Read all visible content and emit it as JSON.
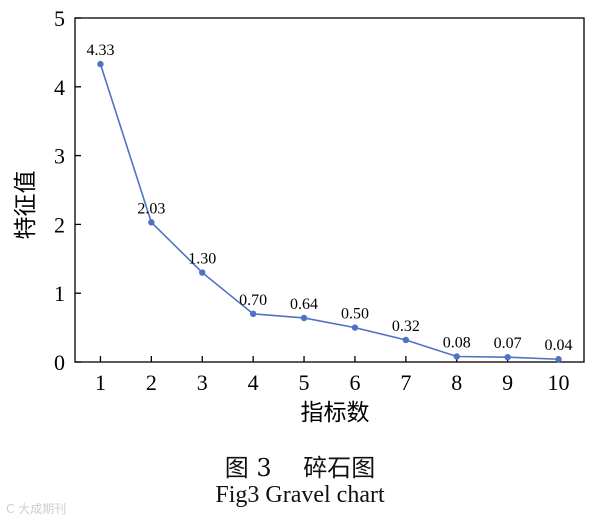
{
  "chart_data": {
    "type": "line",
    "categories": [
      "1",
      "2",
      "3",
      "4",
      "5",
      "6",
      "7",
      "8",
      "9",
      "10"
    ],
    "x": [
      1,
      2,
      3,
      4,
      5,
      6,
      7,
      8,
      9,
      10
    ],
    "values": [
      4.33,
      2.03,
      1.3,
      0.7,
      0.64,
      0.5,
      0.32,
      0.08,
      0.07,
      0.04
    ],
    "data_labels": [
      "4.33",
      "2.03",
      "1.30",
      "0.70",
      "0.64",
      "0.50",
      "0.32",
      "0.08",
      "0.07",
      "0.04"
    ],
    "xlabel": "指标数",
    "ylabel": "特征值",
    "ylim": [
      0,
      5
    ],
    "yticks": [
      0,
      1,
      2,
      3,
      4,
      5
    ],
    "xticks": [
      1,
      2,
      3,
      4,
      5,
      6,
      7,
      8,
      9,
      10
    ],
    "grid": false,
    "line_color": "#4f72c4"
  },
  "caption": {
    "zh": "图 3　 碎石图",
    "en": "Fig3 Gravel chart"
  },
  "watermark": "C 大成期刊"
}
